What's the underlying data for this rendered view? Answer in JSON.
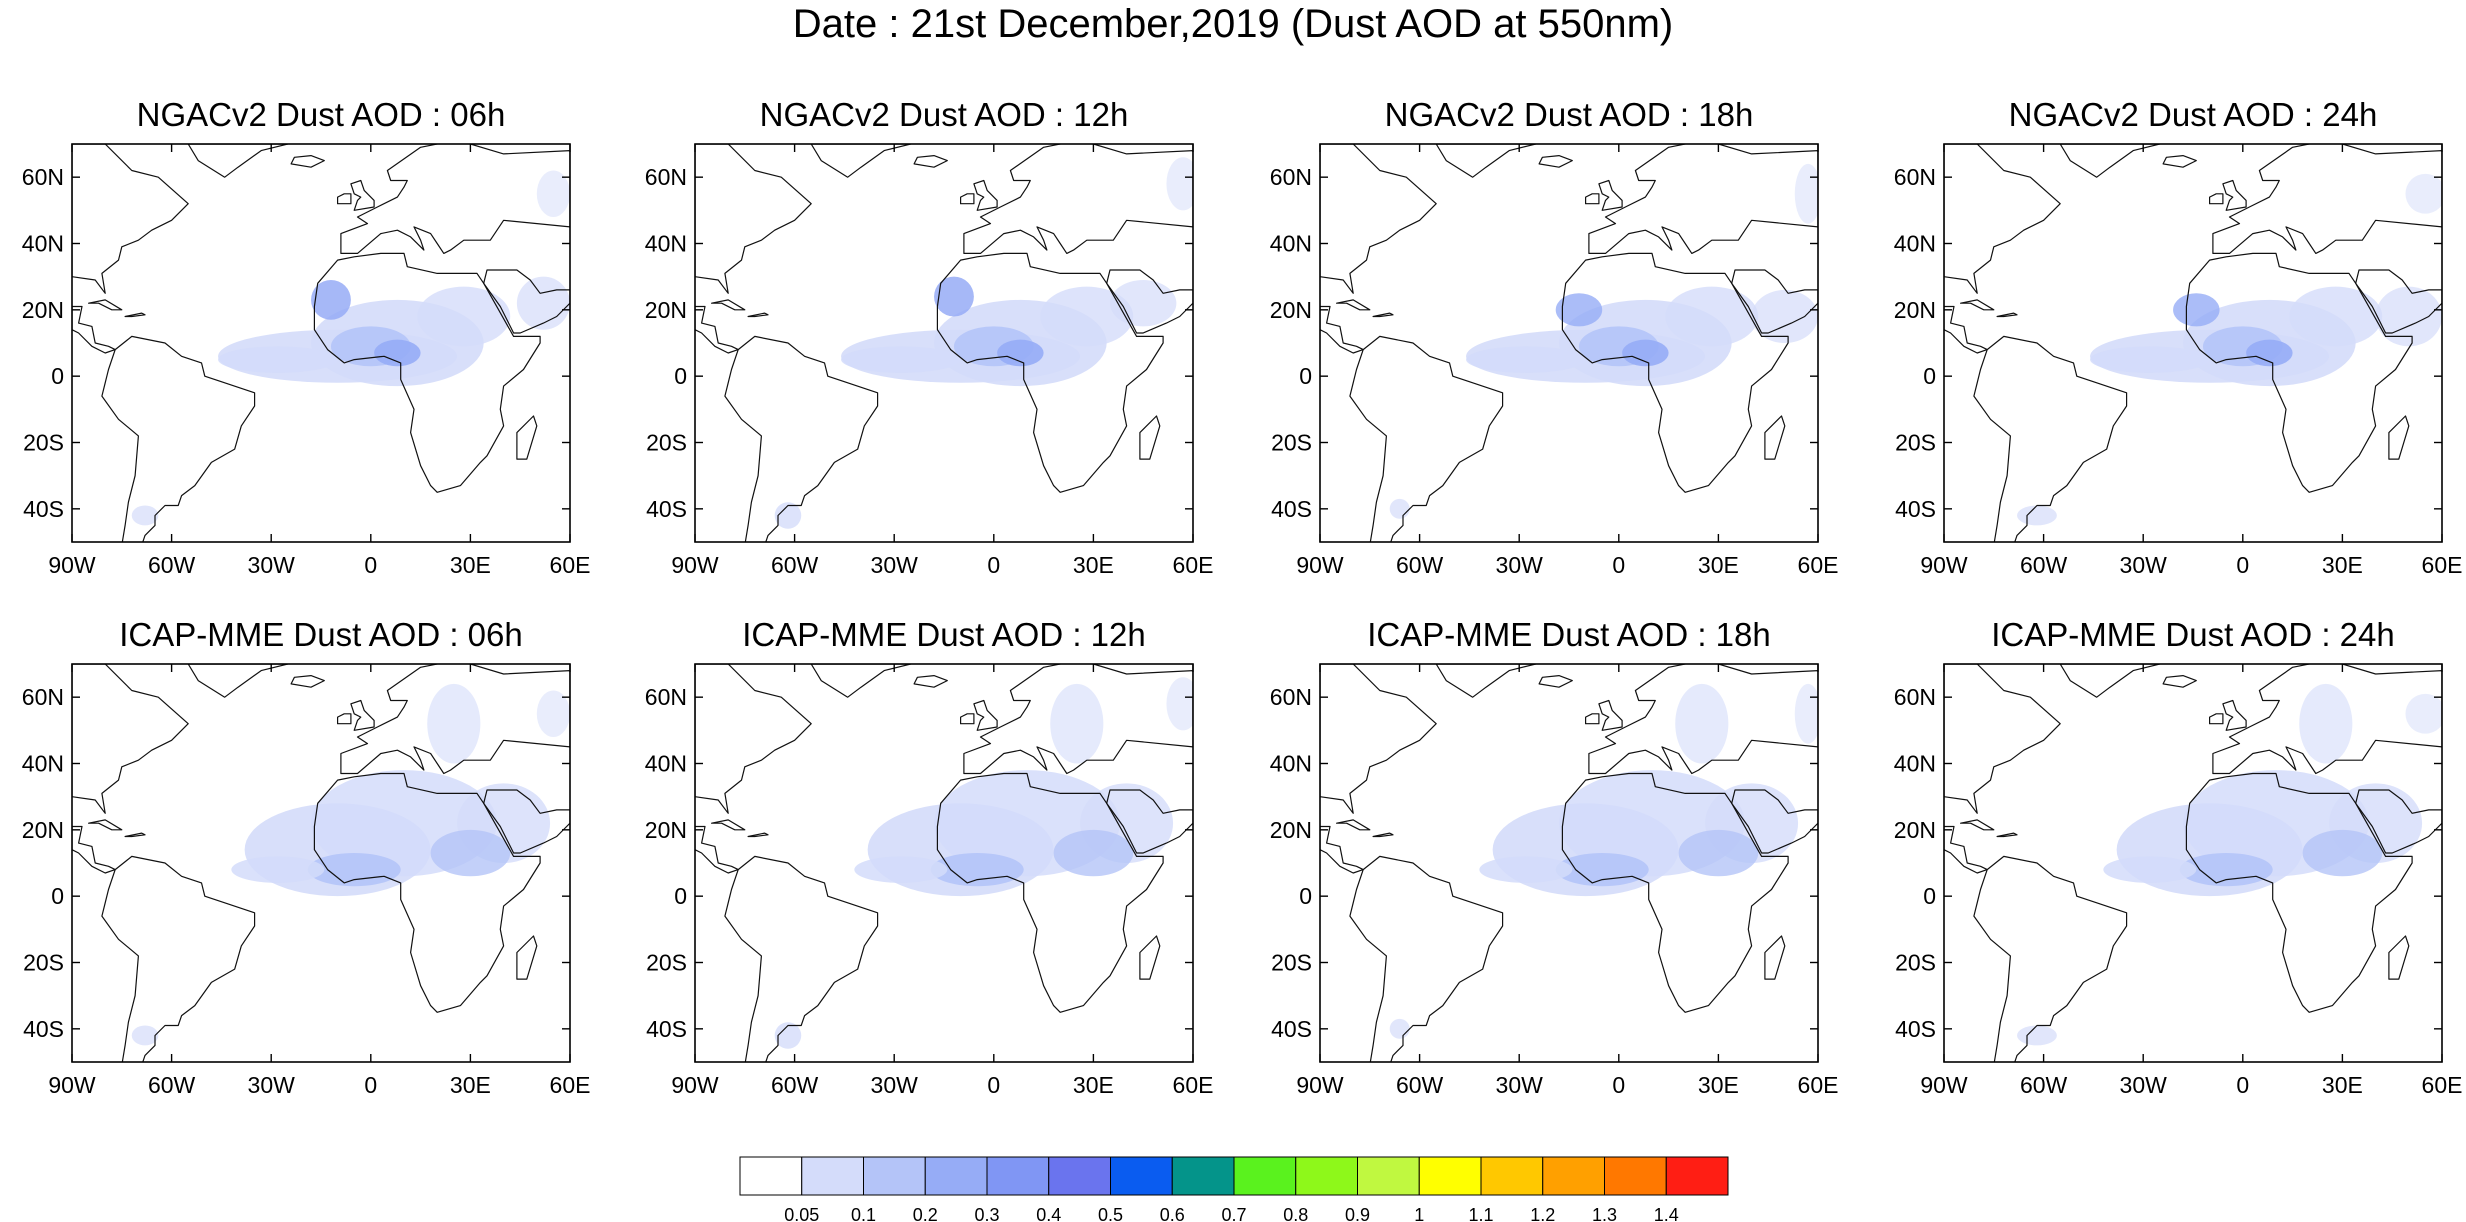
{
  "title": "Date : 21st December,2019 (Dust AOD at 550nm)",
  "map_extent": {
    "lon": [
      -90,
      60
    ],
    "lat": [
      -50,
      70
    ]
  },
  "lon_ticks": [
    {
      "value": -90,
      "label": "90W"
    },
    {
      "value": -60,
      "label": "60W"
    },
    {
      "value": -30,
      "label": "30W"
    },
    {
      "value": 0,
      "label": "0"
    },
    {
      "value": 30,
      "label": "30E"
    },
    {
      "value": 60,
      "label": "60E"
    }
  ],
  "lat_ticks": [
    {
      "value": 60,
      "label": "60N"
    },
    {
      "value": 40,
      "label": "40N"
    },
    {
      "value": 20,
      "label": "20N"
    },
    {
      "value": 0,
      "label": "0"
    },
    {
      "value": -20,
      "label": "20S"
    },
    {
      "value": -40,
      "label": "40S"
    }
  ],
  "panels": [
    {
      "title": "NGACv2 Dust AOD : 06h"
    },
    {
      "title": "NGACv2 Dust AOD : 12h"
    },
    {
      "title": "NGACv2 Dust AOD : 18h"
    },
    {
      "title": "NGACv2 Dust AOD : 24h"
    },
    {
      "title": "ICAP-MME Dust AOD : 06h"
    },
    {
      "title": "ICAP-MME Dust AOD : 12h"
    },
    {
      "title": "ICAP-MME Dust AOD : 18h"
    },
    {
      "title": "ICAP-MME Dust AOD : 24h"
    }
  ],
  "colorbar": {
    "colors": [
      "#ffffff",
      "#d4dcfa",
      "#b4c4f8",
      "#96acf6",
      "#8096f4",
      "#6a74ee",
      "#0a5cf0",
      "#04948a",
      "#5af21e",
      "#8ef81a",
      "#c0f840",
      "#ffff00",
      "#ffc800",
      "#ffa000",
      "#ff7800",
      "#ff1e14"
    ],
    "labels": [
      "0.05",
      "0.1",
      "0.2",
      "0.3",
      "0.4",
      "0.5",
      "0.6",
      "0.7",
      "0.8",
      "0.9",
      "1",
      "1.1",
      "1.2",
      "1.3",
      "1.4"
    ]
  }
}
